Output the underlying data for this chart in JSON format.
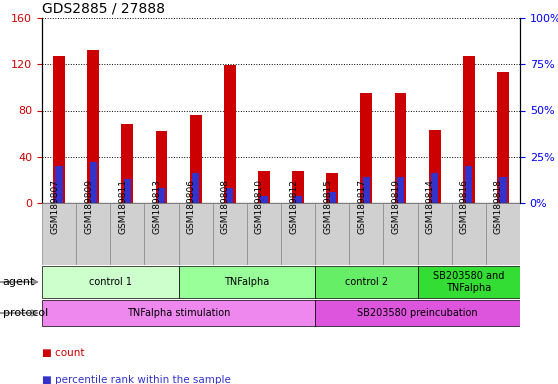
{
  "title": "GDS2885 / 27888",
  "samples": [
    "GSM189807",
    "GSM189809",
    "GSM189811",
    "GSM189813",
    "GSM189806",
    "GSM189808",
    "GSM189810",
    "GSM189812",
    "GSM189815",
    "GSM189817",
    "GSM189819",
    "GSM189814",
    "GSM189816",
    "GSM189818"
  ],
  "counts": [
    127,
    132,
    68,
    62,
    76,
    119,
    28,
    28,
    26,
    95,
    95,
    63,
    127,
    113
  ],
  "percentile_ranks": [
    20,
    22,
    13,
    8,
    16,
    8,
    4,
    4,
    6,
    14,
    14,
    16,
    20,
    14
  ],
  "ylim_left": [
    0,
    160
  ],
  "ylim_right": [
    0,
    100
  ],
  "yticks_left": [
    0,
    40,
    80,
    120,
    160
  ],
  "yticks_right": [
    0,
    25,
    50,
    75,
    100
  ],
  "yticklabels_right": [
    "0%",
    "25%",
    "50%",
    "75%",
    "100%"
  ],
  "bar_color_count": "#cc0000",
  "bar_color_pct": "#3333cc",
  "agent_groups": [
    {
      "label": "control 1",
      "start": 0,
      "end": 3,
      "color": "#ccffcc"
    },
    {
      "label": "TNFalpha",
      "start": 4,
      "end": 7,
      "color": "#99ff99"
    },
    {
      "label": "control 2",
      "start": 8,
      "end": 10,
      "color": "#66ee66"
    },
    {
      "label": "SB203580 and\nTNFalpha",
      "start": 11,
      "end": 13,
      "color": "#33dd33"
    }
  ],
  "protocol_groups": [
    {
      "label": "TNFalpha stimulation",
      "start": 0,
      "end": 7,
      "color": "#ee88ee"
    },
    {
      "label": "SB203580 preincubation",
      "start": 8,
      "end": 13,
      "color": "#dd55dd"
    }
  ],
  "agent_label": "agent",
  "protocol_label": "protocol",
  "legend_count_label": "count",
  "legend_pct_label": "percentile rank within the sample"
}
